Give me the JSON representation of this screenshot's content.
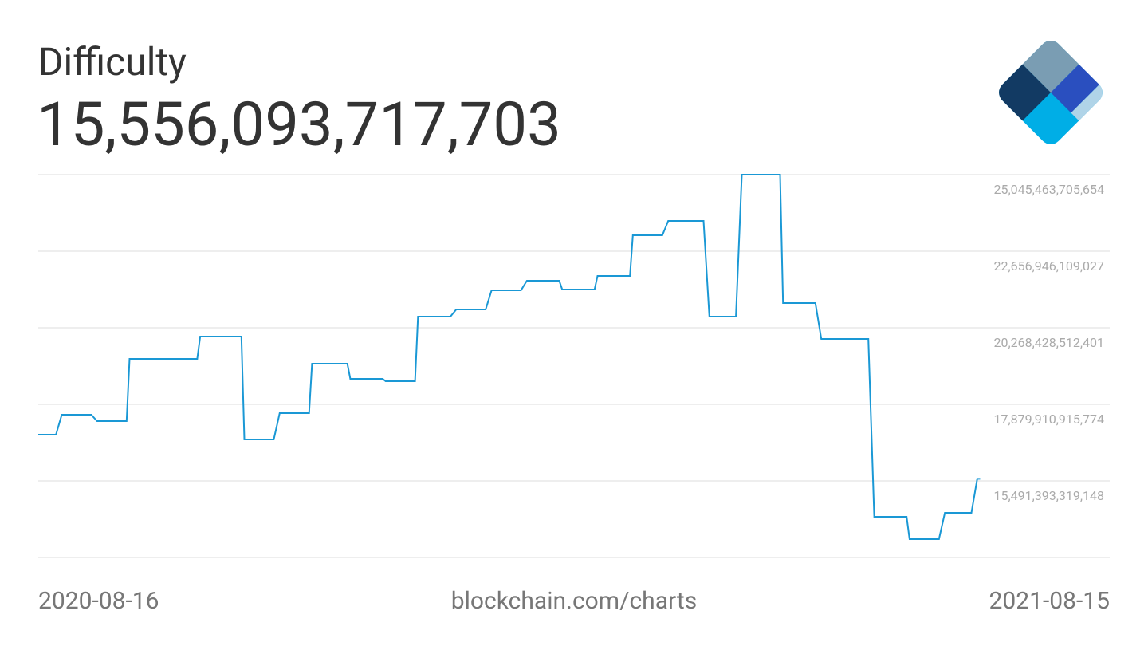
{
  "chart_data": {
    "type": "line",
    "title": "Difficulty",
    "subtitle": "15,556,093,717,703",
    "source": "blockchain.com/charts",
    "color": "#1a98d5",
    "grid": true,
    "xlim": [
      "2020-08-16",
      "2021-08-15"
    ],
    "ylim": [
      13102875722522,
      25045463705654
    ],
    "yticks": [
      {
        "value": 25045463705654,
        "label": "25,045,463,705,654"
      },
      {
        "value": 22656946109027,
        "label": "22,656,946,109,027"
      },
      {
        "value": 20268428512401,
        "label": "20,268,428,512,401"
      },
      {
        "value": 17879910915774,
        "label": "17,879,910,915,774"
      },
      {
        "value": 15491393319148,
        "label": "15,491,393,319,148"
      }
    ],
    "x": [
      "2020-08-16",
      "2020-08-22",
      "2020-08-24",
      "2020-09-03",
      "2020-09-05",
      "2020-09-15",
      "2020-09-16",
      "2020-10-09",
      "2020-10-10",
      "2020-10-24",
      "2020-10-25",
      "2020-11-04",
      "2020-11-06",
      "2020-11-16",
      "2020-11-17",
      "2020-11-29",
      "2020-11-30",
      "2020-12-11",
      "2020-12-12",
      "2020-12-22",
      "2020-12-23",
      "2021-01-03",
      "2021-01-05",
      "2021-01-15",
      "2021-01-17",
      "2021-01-27",
      "2021-01-29",
      "2021-02-09",
      "2021-02-10",
      "2021-02-21",
      "2021-02-22",
      "2021-03-05",
      "2021-03-06",
      "2021-03-16",
      "2021-03-18",
      "2021-03-30",
      "2021-04-01",
      "2021-04-10",
      "2021-04-12",
      "2021-04-25",
      "2021-04-26",
      "2021-05-07",
      "2021-05-09",
      "2021-05-25",
      "2021-05-27",
      "2021-06-07",
      "2021-06-08",
      "2021-06-18",
      "2021-06-20",
      "2021-06-29",
      "2021-07-01",
      "2021-07-02"
    ],
    "values": [
      16934000000000,
      16934000000000,
      17556000000000,
      17556000000000,
      17357000000000,
      17357000000000,
      19298000000000,
      19298000000000,
      19995000000000,
      19995000000000,
      16785000000000,
      16785000000000,
      17606000000000,
      17606000000000,
      19149000000000,
      19149000000000,
      18676000000000,
      18676000000000,
      18601000000000,
      18601000000000,
      20617000000000,
      20617000000000,
      20841000000000,
      20841000000000,
      21438000000000,
      21438000000000,
      21736000000000,
      21736000000000,
      21463000000000,
      21463000000000,
      21886000000000,
      21886000000000,
      23155000000000,
      23155000000000,
      23602000000000,
      23602000000000,
      20617000000000,
      20617000000000,
      25045463705654,
      25045463705654,
      21040000000000,
      21040000000000,
      19920000000000,
      19920000000000,
      14372000000000,
      14372000000000,
      13675000000000,
      13675000000000,
      14496000000000,
      14496000000000,
      15556093717703,
      15556093717703
    ]
  }
}
